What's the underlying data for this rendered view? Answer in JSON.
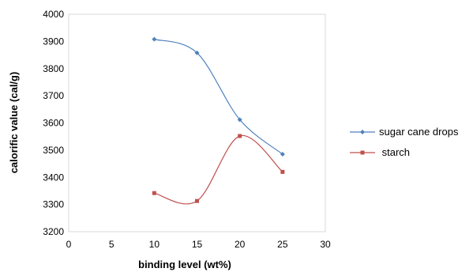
{
  "chart_data": {
    "type": "scatter",
    "xlabel": "binding level (wt%)",
    "ylabel": "calorific value (cal/g)",
    "xlim": [
      0,
      30
    ],
    "ylim": [
      3200,
      4000
    ],
    "xticks": [
      "0",
      "5",
      "10",
      "15",
      "20",
      "25",
      "30"
    ],
    "yticks": [
      "3200",
      "3300",
      "3400",
      "3500",
      "3600",
      "3700",
      "3800",
      "3900",
      "4000"
    ],
    "grid": false,
    "smooth_lines": true,
    "legend_position": "right",
    "series": [
      {
        "name": "sugar cane drops",
        "color": "#4F81BD",
        "marker": "diamond",
        "x": [
          10,
          15,
          20,
          25
        ],
        "y": [
          3908,
          3858,
          3612,
          3485
        ]
      },
      {
        "name": " starch",
        "color": "#C0504D",
        "marker": "square",
        "x": [
          10,
          15,
          20,
          25
        ],
        "y": [
          3342,
          3313,
          3552,
          3420
        ]
      }
    ]
  }
}
